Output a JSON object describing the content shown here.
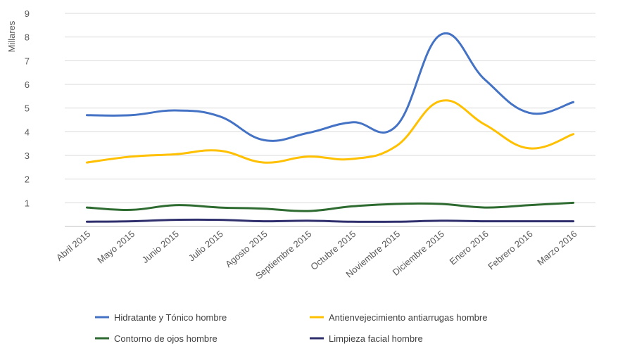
{
  "chart_data": {
    "type": "line",
    "title": "",
    "xlabel": "",
    "ylabel": "Millares",
    "ylim": [
      0,
      9
    ],
    "yticks": [
      "1",
      "2",
      "3",
      "4",
      "5",
      "6",
      "7",
      "8",
      "9"
    ],
    "grid": true,
    "legend_position": "bottom",
    "categories": [
      "Abril 2015",
      "Mayo 2015",
      "Junio 2015",
      "Julio 2015",
      "Agosto 2015",
      "Septiembre 2015",
      "Octubre 2015",
      "Noviembre 2015",
      "Diciembre 2015",
      "Enero 2016",
      "Febrero 2016",
      "Marzo 2016"
    ],
    "series": [
      {
        "name": "Hidratante y Tónico hombre",
        "color": "#4472C4",
        "values": [
          4.7,
          4.7,
          4.9,
          4.65,
          3.65,
          3.95,
          4.4,
          4.25,
          8.1,
          6.2,
          4.8,
          5.25
        ]
      },
      {
        "name": "Antienvejecimiento antiarrugas hombre",
        "color": "#FFC000",
        "values": [
          2.7,
          2.95,
          3.05,
          3.2,
          2.7,
          2.95,
          2.85,
          3.4,
          5.3,
          4.3,
          3.3,
          3.9
        ]
      },
      {
        "name": "Contorno de ojos hombre",
        "color": "#2E6B30",
        "values": [
          0.8,
          0.7,
          0.9,
          0.8,
          0.75,
          0.65,
          0.85,
          0.95,
          0.95,
          0.8,
          0.9,
          1.0
        ]
      },
      {
        "name": "Limpieza facial hombre",
        "color": "#2F2F6E",
        "values": [
          0.2,
          0.22,
          0.28,
          0.28,
          0.22,
          0.24,
          0.2,
          0.2,
          0.24,
          0.22,
          0.22,
          0.22
        ]
      }
    ]
  }
}
